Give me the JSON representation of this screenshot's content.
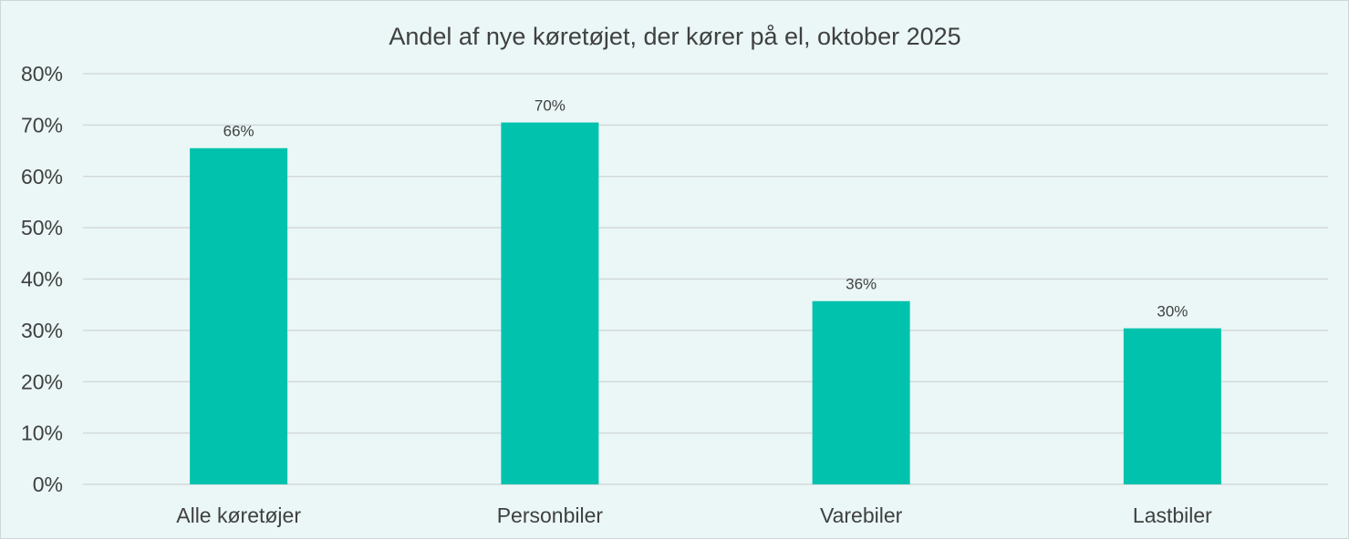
{
  "chart_data": {
    "type": "bar",
    "title": "Andel af nye køretøjet, der kører på el, oktober 2025",
    "xlabel": "",
    "ylabel": "",
    "categories": [
      "Alle køretøjer",
      "Personbiler",
      "Varebiler",
      "Lastbiler"
    ],
    "values": [
      0.655,
      0.705,
      0.357,
      0.304
    ],
    "data_labels": [
      "66%",
      "70%",
      "36%",
      "30%"
    ],
    "ylim": [
      0,
      0.8
    ],
    "yticks": [
      0,
      0.1,
      0.2,
      0.3,
      0.4,
      0.5,
      0.6,
      0.7,
      0.8
    ],
    "ytick_labels": [
      "0%",
      "10%",
      "20%",
      "30%",
      "40%",
      "50%",
      "60%",
      "70%",
      "80%"
    ],
    "grid": true,
    "legend": "none",
    "colors": {
      "bar": "#00c2ad",
      "background": "#eaf7f6",
      "grid": "#d4d9d9",
      "text": "#404040"
    }
  }
}
